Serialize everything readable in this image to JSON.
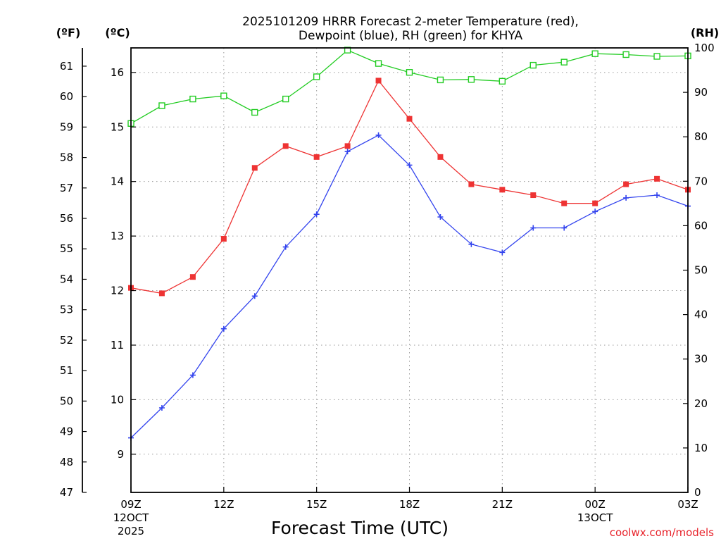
{
  "chart_data": {
    "type": "line",
    "title_line1": "2025101209 HRRR Forecast 2-meter Temperature (red),",
    "title_line2": "Dewpoint (blue), RH (green) for KHYA",
    "xlabel": "Forecast Time (UTC)",
    "left_unit_f": "(ºF)",
    "left_unit_c": "(ºC)",
    "right_unit": "(RH)",
    "credit": "coolwx.com/models",
    "hours": [
      0,
      1,
      2,
      3,
      4,
      5,
      6,
      7,
      8,
      9,
      10,
      11,
      12,
      13,
      14,
      15,
      16,
      17,
      18
    ],
    "x_ticks": [
      {
        "hour": 0,
        "label": "09Z",
        "sub1": "12OCT",
        "sub2": "2025"
      },
      {
        "hour": 3,
        "label": "12Z",
        "sub1": "",
        "sub2": ""
      },
      {
        "hour": 6,
        "label": "15Z",
        "sub1": "",
        "sub2": ""
      },
      {
        "hour": 9,
        "label": "18Z",
        "sub1": "",
        "sub2": ""
      },
      {
        "hour": 12,
        "label": "21Z",
        "sub1": "",
        "sub2": ""
      },
      {
        "hour": 15,
        "label": "00Z",
        "sub1": "13OCT",
        "sub2": ""
      },
      {
        "hour": 18,
        "label": "03Z",
        "sub1": "",
        "sub2": ""
      }
    ],
    "ylim_c": [
      8.3,
      16.45
    ],
    "ylim_f": [
      47,
      61.6
    ],
    "ylim_rh": [
      0,
      100
    ],
    "yticks_f": [
      47,
      48,
      49,
      50,
      51,
      52,
      53,
      54,
      55,
      56,
      57,
      58,
      59,
      60,
      61
    ],
    "yticks_c": [
      9,
      10,
      11,
      12,
      13,
      14,
      15,
      16
    ],
    "yticks_rh": [
      0,
      10,
      20,
      30,
      40,
      50,
      60,
      70,
      80,
      90,
      100
    ],
    "series": [
      {
        "name": "Temperature",
        "color": "#ee3333",
        "marker": "filled-square",
        "values_c": [
          12.05,
          11.95,
          12.25,
          12.95,
          14.25,
          14.65,
          14.45,
          14.65,
          15.85,
          15.15,
          14.45,
          13.95,
          13.85,
          13.75,
          13.6,
          13.6,
          13.95,
          14.05,
          13.85
        ]
      },
      {
        "name": "Dewpoint",
        "color": "#3344ee",
        "marker": "plus",
        "values_c": [
          9.3,
          9.85,
          10.45,
          11.3,
          11.9,
          12.8,
          13.4,
          14.55,
          14.85,
          14.3,
          13.35,
          12.85,
          12.7,
          13.15,
          13.15,
          13.45,
          13.7,
          13.75,
          13.55
        ]
      },
      {
        "name": "RH",
        "color": "#22cc22",
        "marker": "open-square",
        "values_rh": [
          83,
          87,
          88.5,
          89.2,
          85.5,
          88.5,
          93.5,
          99.5,
          96.5,
          94.5,
          92.8,
          92.9,
          92.5,
          96.1,
          96.8,
          98.7,
          98.5,
          98.1,
          98.2
        ]
      }
    ]
  }
}
